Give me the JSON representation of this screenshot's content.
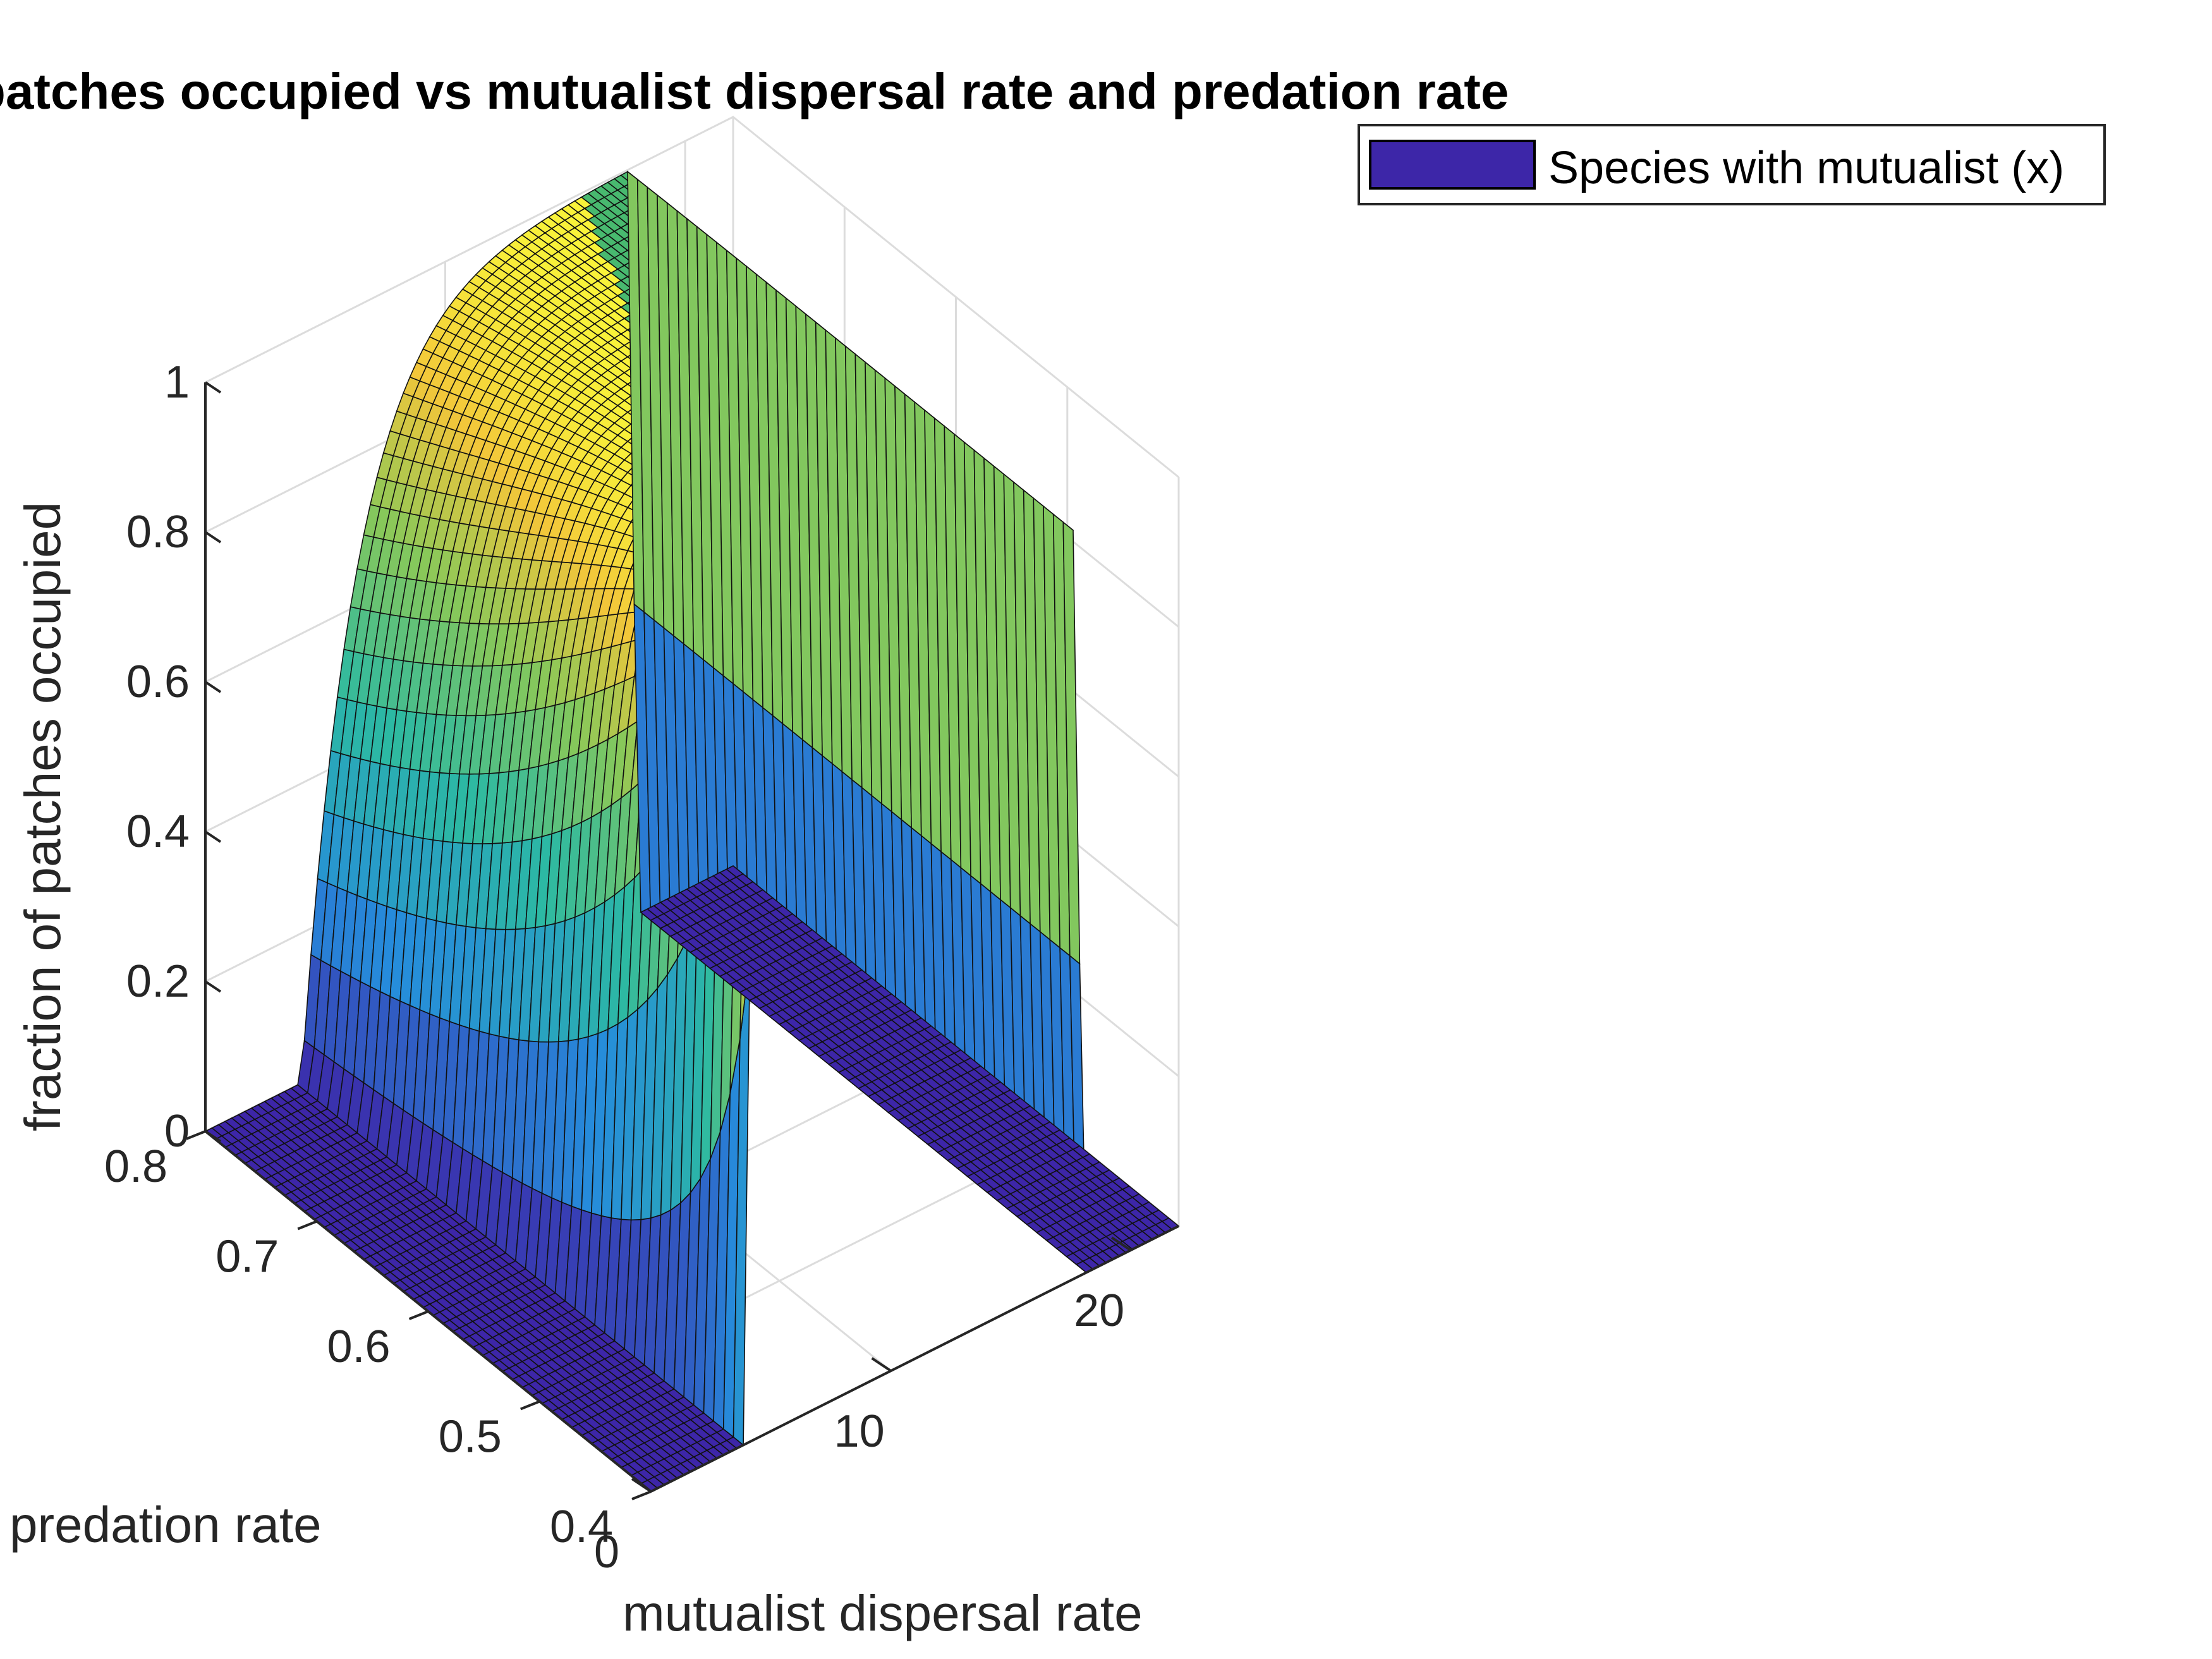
{
  "chart_data": {
    "type": "surface",
    "title": "patches occupied vs mutualist dispersal rate and predation rate",
    "xlabel": "mutualist dispersal rate",
    "ylabel": "predation rate",
    "zlabel": "fraction of patches occupied",
    "xlim": [
      0,
      22
    ],
    "ylim": [
      0.4,
      0.8
    ],
    "zlim": [
      0,
      1
    ],
    "x_ticks": [
      "0",
      "10",
      "20"
    ],
    "y_ticks": [
      "0.4",
      "0.5",
      "0.6",
      "0.7",
      "0.8"
    ],
    "z_ticks": [
      "0",
      "0.2",
      "0.4",
      "0.6",
      "0.8",
      "1"
    ],
    "grid": true,
    "legend": {
      "placement": "top-right",
      "entries": [
        {
          "name": "Species with mutualist (x)",
          "color": "#3d26a8"
        }
      ]
    },
    "surface_description_values": {
      "low_threshold_dispersal": 4,
      "high_threshold_dispersal": 18,
      "plateau_value": 1
    }
  },
  "colors": {
    "surface_low": "#3d26a8",
    "surface_mid": "#2cb9a3",
    "surface_green": "#48b96f",
    "surface_high": "#f2c63a",
    "surface_top": "#f9f53a"
  }
}
